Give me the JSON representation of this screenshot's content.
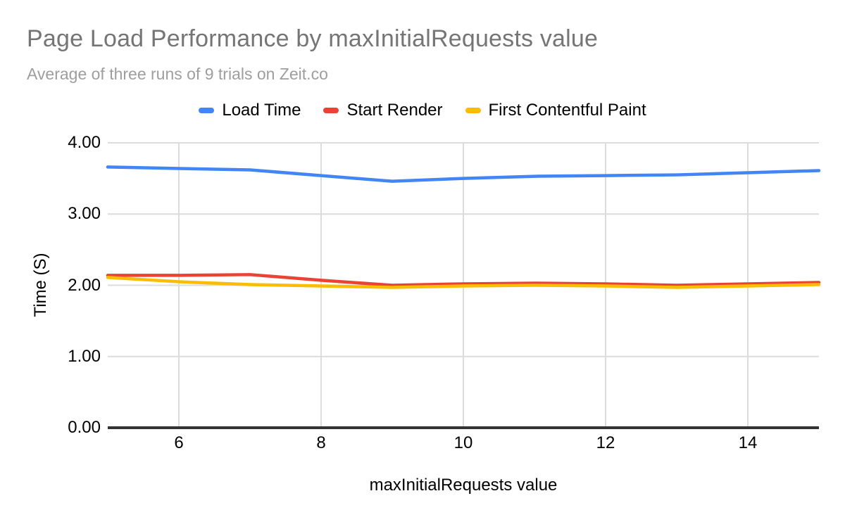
{
  "chart": {
    "title": "Page Load Performance by maxInitialRequests value",
    "subtitle": "Average of three runs of 9 trials on Zeit.co"
  },
  "colors": {
    "title_text": "#757575",
    "subtitle_text": "#9e9e9e",
    "tick_text": "#000000",
    "grid": "#dcdcdc",
    "baseline": "#333333",
    "background": "#ffffff"
  },
  "chart_data": {
    "type": "line",
    "title": "Page Load Performance by maxInitialRequests value",
    "subtitle": "Average of three runs of 9 trials on Zeit.co",
    "xlabel": "maxInitialRequests value",
    "ylabel": "Time (S)",
    "xlim": [
      5,
      15
    ],
    "ylim": [
      0,
      4
    ],
    "grid": true,
    "legend_position": "top",
    "x": [
      5,
      6,
      7,
      8,
      9,
      10,
      11,
      12,
      13,
      14,
      15
    ],
    "xticks": [
      "6",
      "8",
      "10",
      "12",
      "14"
    ],
    "xtick_values": [
      6,
      8,
      10,
      12,
      14
    ],
    "yticks": [
      "0.00",
      "1.00",
      "2.00",
      "3.00",
      "4.00"
    ],
    "ytick_values": [
      0,
      1,
      2,
      3,
      4
    ],
    "series": [
      {
        "name": "Load Time",
        "color": "#4285F4",
        "values": [
          3.66,
          3.64,
          3.62,
          3.54,
          3.46,
          3.5,
          3.53,
          3.54,
          3.55,
          3.58,
          3.61
        ]
      },
      {
        "name": "Start Render",
        "color": "#EA4335",
        "values": [
          2.14,
          2.14,
          2.15,
          2.07,
          2.0,
          2.02,
          2.03,
          2.02,
          2.0,
          2.02,
          2.04
        ]
      },
      {
        "name": "First Contentful Paint",
        "color": "#FBBC04",
        "values": [
          2.11,
          2.05,
          2.01,
          1.99,
          1.97,
          1.99,
          2.0,
          1.99,
          1.97,
          1.99,
          2.01
        ]
      }
    ]
  }
}
